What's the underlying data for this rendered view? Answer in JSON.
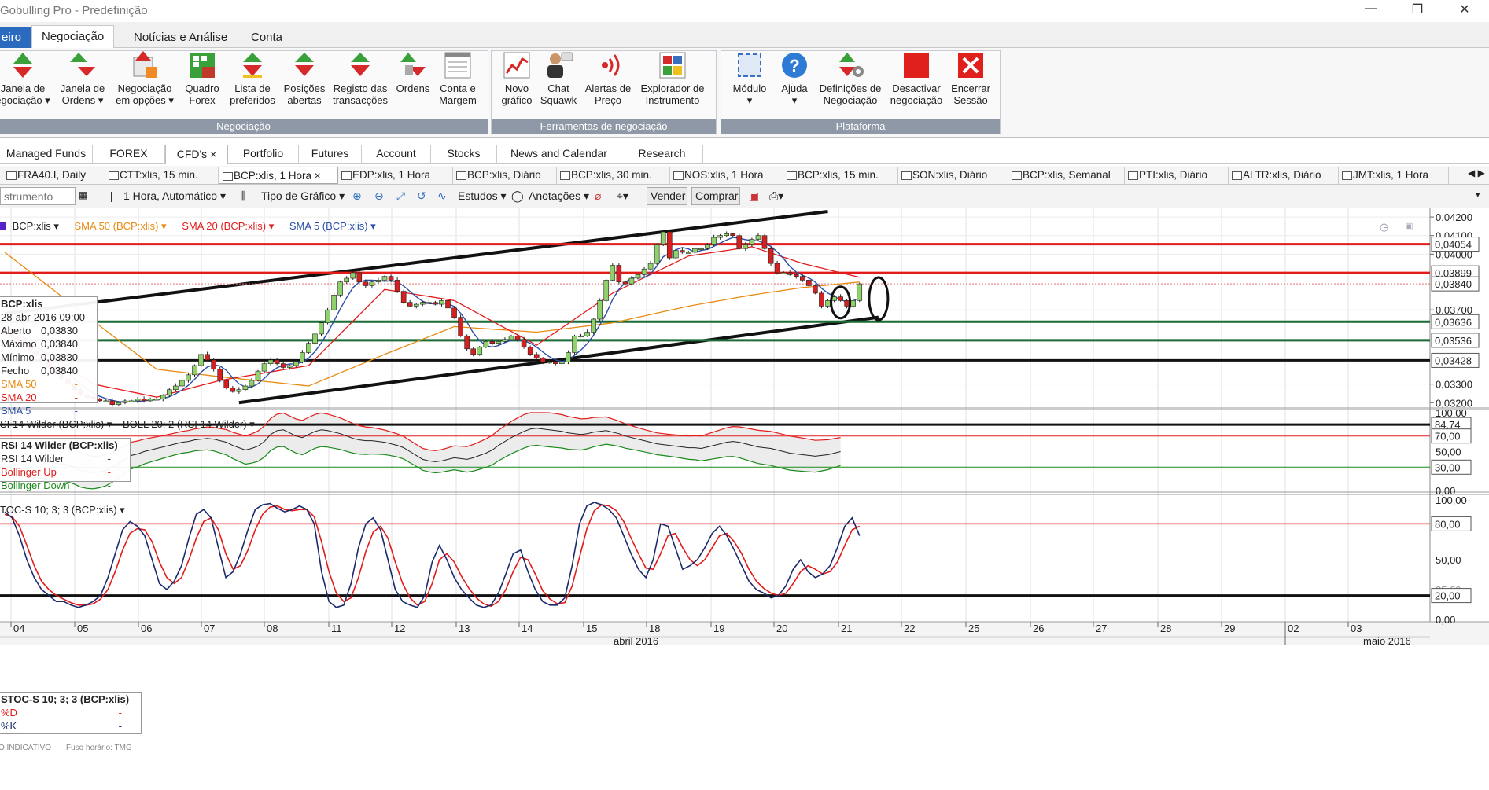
{
  "window": {
    "title": "Gobulling Pro - Predefinição"
  },
  "ribbon_tabs": [
    {
      "label": "eiro"
    },
    {
      "label": "Negociação"
    },
    {
      "label": "Notícias e Análise"
    },
    {
      "label": "Conta"
    }
  ],
  "ribbon": {
    "groups": [
      {
        "label": "Negociação"
      },
      {
        "label": "Ferramentas de negociação"
      },
      {
        "label": "Plataforma"
      }
    ],
    "buttons": [
      {
        "l1": "Janela de",
        "l2": "egociação ▾"
      },
      {
        "l1": "Janela de",
        "l2": "Ordens ▾"
      },
      {
        "l1": "Negociação",
        "l2": "em opções ▾"
      },
      {
        "l1": "Quadro",
        "l2": "Forex"
      },
      {
        "l1": "Lista de",
        "l2": "preferidos"
      },
      {
        "l1": "Posições",
        "l2": "abertas"
      },
      {
        "l1": "Registo das",
        "l2": "transacções"
      },
      {
        "l1": "Ordens",
        "l2": ""
      },
      {
        "l1": "Conta e",
        "l2": "Margem"
      },
      {
        "l1": "Novo",
        "l2": "gráfico"
      },
      {
        "l1": "Chat",
        "l2": "Squawk"
      },
      {
        "l1": "Alertas de",
        "l2": "Preço"
      },
      {
        "l1": "Explorador de",
        "l2": "Instrumento"
      },
      {
        "l1": "Módulo",
        "l2": "▾"
      },
      {
        "l1": "Ajuda",
        "l2": "▾"
      },
      {
        "l1": "Definições de",
        "l2": "Negociação"
      },
      {
        "l1": "Desactivar",
        "l2": "negociação"
      },
      {
        "l1": "Encerrar",
        "l2": "Sessão"
      }
    ]
  },
  "workspace_tabs": [
    {
      "label": "Managed Funds"
    },
    {
      "label": "FOREX"
    },
    {
      "label": "CFD's"
    },
    {
      "label": "Portfolio"
    },
    {
      "label": "Futures"
    },
    {
      "label": "Account"
    },
    {
      "label": "Stocks"
    },
    {
      "label": "News and Calendar"
    },
    {
      "label": "Research"
    }
  ],
  "close_glyph": "×",
  "chart_tabs": [
    {
      "label": "FRA40.I, Daily"
    },
    {
      "label": "CTT:xlis, 15 min."
    },
    {
      "label": "BCP:xlis, 1 Hora"
    },
    {
      "label": "EDP:xlis, 1 Hora"
    },
    {
      "label": "BCP:xlis, Diário"
    },
    {
      "label": "BCP:xlis, 30 min."
    },
    {
      "label": "NOS:xlis, 1 Hora"
    },
    {
      "label": "BCP:xlis, 15 min."
    },
    {
      "label": "SON:xlis, Diário"
    },
    {
      "label": "BCP:xlis, Semanal"
    },
    {
      "label": "PTI:xlis, Diário"
    },
    {
      "label": "ALTR:xlis, Diário"
    },
    {
      "label": "JMT:xlis, 1 Hora"
    }
  ],
  "toolbar": {
    "instrument_placeholder": "strumento",
    "interval": "1 Hora, Automático ▾",
    "chart_type": "Tipo de Gráfico ▾",
    "studies": "Estudos ▾",
    "annotations": "Anotações ▾",
    "sell": "Vender",
    "buy": "Comprar"
  },
  "price_panel": {
    "legend": [
      "BCP:xlis ▾",
      "SMA 50 (BCP:xlis) ▾",
      "SMA 20 (BCP:xlis) ▾",
      "SMA 5 (BCP:xlis) ▾"
    ],
    "info": {
      "title": "BCP:xlis",
      "datetime": "28-abr-2016 09:00",
      "rows": [
        {
          "k": "Aberto",
          "v": "0,03830"
        },
        {
          "k": "Máximo",
          "v": "0,03840"
        },
        {
          "k": "Mínimo",
          "v": "0,03830"
        },
        {
          "k": "Fecho",
          "v": "0,03840"
        },
        {
          "k": "SMA 50",
          "v": "-"
        },
        {
          "k": "SMA 20",
          "v": "-"
        },
        {
          "k": "SMA 5",
          "v": "-"
        }
      ]
    },
    "axis_ticks": [
      "0,04200",
      "0,04100",
      "0,04000",
      "0,03700",
      "0,03300",
      "0,03200"
    ],
    "level_labels": [
      "0,04054",
      "0,03899",
      "0,03840",
      "0,03636",
      "0,03536",
      "0,03428"
    ]
  },
  "rsi_panel": {
    "legend": "SI 14 Wilder (BCP:xlis) ▾",
    "legend2": "BOLL 20; 2 (RSI 14 Wilder) ▾",
    "info": {
      "title": "RSI 14 Wilder (BCP:xlis)",
      "rows": [
        {
          "k": "RSI 14 Wilder",
          "v": "-"
        },
        {
          "k": "Bollinger Up",
          "v": "-"
        },
        {
          "k": "Bollinger Down",
          "v": "-"
        }
      ]
    },
    "axis_ticks": [
      "100,00",
      "50,00",
      "0,00"
    ],
    "level_labels": [
      "84,74",
      "70,00",
      "30,00"
    ]
  },
  "stoch_panel": {
    "legend": "TOC-S 10; 3; 3 (BCP:xlis) ▾",
    "info": {
      "title": "STOC-S 10; 3; 3 (BCP:xlis)",
      "rows": [
        {
          "k": "%D",
          "v": "-"
        },
        {
          "k": "%K",
          "v": "-"
        }
      ]
    },
    "axis_ticks": [
      "100,00",
      "50,00",
      "25,00",
      "0,00"
    ],
    "level_labels": [
      "80,00",
      "20,00"
    ]
  },
  "footer": {
    "note": "O INDICATIVO",
    "tz": "Fuso horário: TMG",
    "days": [
      "04",
      "05",
      "06",
      "07",
      "08",
      "11",
      "12",
      "13",
      "14",
      "15",
      "18",
      "19",
      "20",
      "21",
      "22",
      "25",
      "26",
      "27",
      "28",
      "29",
      "02",
      "03"
    ],
    "months": [
      "abril 2016",
      "maio 2016"
    ]
  },
  "chart_data": {
    "type": "candlestick",
    "instrument": "BCP:xlis",
    "interval": "1 Hora",
    "y_range": [
      0.0318,
      0.0423
    ],
    "rsi_range": [
      0,
      100
    ],
    "stoch_range": [
      0,
      100
    ],
    "horizontal_levels": [
      {
        "value": 0.04054,
        "color": "#e21b1b"
      },
      {
        "value": 0.03899,
        "color": "#e21b1b"
      },
      {
        "value": 0.03636,
        "color": "#1a6b35"
      },
      {
        "value": 0.03536,
        "color": "#1a6b35"
      },
      {
        "value": 0.03428,
        "color": "#111111"
      }
    ],
    "trendlines": [
      {
        "from": [
          0,
          0.0368
        ],
        "to": [
          130,
          0.0423
        ],
        "color": "#111111"
      },
      {
        "from": [
          37,
          0.032
        ],
        "to": [
          138,
          0.0366
        ],
        "color": "#111111"
      }
    ],
    "closes": [
      0.0358,
      0.0355,
      0.0352,
      0.035,
      0.0348,
      0.0346,
      0.0343,
      0.0339,
      0.0336,
      0.0333,
      0.033,
      0.0327,
      0.0324,
      0.0323,
      0.0322,
      0.0321,
      0.0321,
      0.0319,
      0.032,
      0.0321,
      0.0321,
      0.0322,
      0.0321,
      0.0322,
      0.0322,
      0.0324,
      0.0327,
      0.0329,
      0.0332,
      0.0335,
      0.034,
      0.0346,
      0.0343,
      0.0338,
      0.0332,
      0.0328,
      0.0326,
      0.0327,
      0.0329,
      0.0332,
      0.0337,
      0.0341,
      0.0343,
      0.0341,
      0.0339,
      0.034,
      0.0342,
      0.0347,
      0.0352,
      0.0357,
      0.0363,
      0.037,
      0.0378,
      0.0385,
      0.0387,
      0.039,
      0.0385,
      0.0383,
      0.0385,
      0.0386,
      0.0388,
      0.0386,
      0.038,
      0.0374,
      0.0372,
      0.0373,
      0.0374,
      0.0374,
      0.0373,
      0.0375,
      0.0371,
      0.0366,
      0.0356,
      0.0349,
      0.0346,
      0.035,
      0.0353,
      0.0352,
      0.0353,
      0.0354,
      0.0356,
      0.0354,
      0.035,
      0.0346,
      0.0344,
      0.0342,
      0.0342,
      0.0341,
      0.0342,
      0.0347,
      0.0356,
      0.0356,
      0.0358,
      0.0365,
      0.0375,
      0.0386,
      0.0394,
      0.0385,
      0.0384,
      0.0387,
      0.0389,
      0.0392,
      0.0395,
      0.0405,
      0.0412,
      0.0398,
      0.0402,
      0.0401,
      0.0401,
      0.0403,
      0.0403,
      0.0405,
      0.0409,
      0.041,
      0.0411,
      0.041,
      0.0403,
      0.0405,
      0.0408,
      0.041,
      0.0403,
      0.0395,
      0.039,
      0.039,
      0.0389,
      0.0388,
      0.0386,
      0.0383,
      0.0379,
      0.0372,
      0.0375,
      0.0377,
      0.0375,
      0.0372,
      0.0375,
      0.0384
    ],
    "sma20_anchor": [
      [
        0,
        0.0362
      ],
      [
        14,
        0.033
      ],
      [
        24,
        0.0323
      ],
      [
        34,
        0.0332
      ],
      [
        48,
        0.034
      ],
      [
        60,
        0.0381
      ],
      [
        71,
        0.0375
      ],
      [
        84,
        0.0351
      ],
      [
        96,
        0.0379
      ],
      [
        108,
        0.0399
      ],
      [
        118,
        0.0404
      ],
      [
        126,
        0.0395
      ],
      [
        138,
        0.0385
      ]
    ],
    "sma50_anchor": [
      [
        0,
        0.0401
      ],
      [
        14,
        0.0364
      ],
      [
        24,
        0.0338
      ],
      [
        34,
        0.0334
      ],
      [
        48,
        0.0329
      ],
      [
        60,
        0.0346
      ],
      [
        71,
        0.0361
      ],
      [
        84,
        0.0358
      ],
      [
        96,
        0.0363
      ],
      [
        108,
        0.0372
      ],
      [
        118,
        0.0378
      ],
      [
        126,
        0.0382
      ],
      [
        138,
        0.0386
      ]
    ],
    "rsi": [
      42,
      40,
      39,
      38,
      38,
      37,
      37,
      36,
      35,
      34,
      33,
      30,
      26,
      24,
      23,
      24,
      26,
      30,
      35,
      40,
      45,
      47,
      50,
      52,
      54,
      56,
      58,
      60,
      62,
      63,
      65,
      66,
      67,
      66,
      64,
      62,
      58,
      55,
      52,
      54,
      57,
      63,
      72,
      77,
      78,
      74,
      70,
      68,
      72,
      76,
      78,
      77,
      75,
      73,
      70,
      67,
      65,
      64,
      64,
      63,
      62,
      60,
      58,
      55,
      50,
      45,
      40,
      38,
      37,
      38,
      40,
      42,
      41,
      40,
      42,
      45,
      48,
      52,
      58,
      63,
      68,
      72,
      76,
      79,
      80,
      79,
      78,
      77,
      76,
      74,
      73,
      72,
      73,
      75,
      76,
      77,
      75,
      73,
      70,
      68,
      66,
      64,
      62,
      60,
      59,
      58,
      57,
      56,
      55,
      55,
      54,
      56,
      58,
      60,
      62,
      63,
      62,
      60,
      58,
      56,
      55,
      54,
      52,
      50,
      48,
      47,
      46,
      45,
      44,
      45,
      46,
      48,
      50
    ],
    "stoch_k": [
      90,
      85,
      70,
      50,
      35,
      25,
      20,
      15,
      15,
      12,
      10,
      12,
      15,
      20,
      35,
      55,
      75,
      82,
      78,
      70,
      50,
      30,
      25,
      32,
      45,
      68,
      88,
      92,
      85,
      60,
      35,
      40,
      55,
      75,
      92,
      96,
      97,
      93,
      90,
      92,
      95,
      92,
      80,
      40,
      15,
      10,
      12,
      30,
      60,
      80,
      85,
      75,
      50,
      25,
      15,
      12,
      10,
      20,
      48,
      62,
      50,
      35,
      25,
      18,
      12,
      10,
      12,
      22,
      38,
      55,
      58,
      40,
      25,
      15,
      12,
      12,
      18,
      45,
      80,
      95,
      98,
      96,
      92,
      85,
      70,
      55,
      42,
      35,
      50,
      80,
      78,
      60,
      42,
      45,
      50,
      60,
      72,
      78,
      70,
      58,
      45,
      32,
      25,
      22,
      18,
      20,
      28,
      42,
      50,
      40,
      35,
      38,
      45,
      60,
      78,
      85,
      70
    ],
    "stoch_d": [
      88,
      86,
      78,
      62,
      45,
      32,
      25,
      20,
      17,
      14,
      12,
      12,
      13,
      17,
      25,
      40,
      58,
      72,
      76,
      75,
      65,
      48,
      35,
      30,
      35,
      50,
      68,
      82,
      85,
      75,
      55,
      42,
      45,
      58,
      75,
      88,
      94,
      95,
      92,
      91,
      92,
      92,
      86,
      65,
      40,
      22,
      15,
      18,
      35,
      57,
      73,
      78,
      68,
      48,
      30,
      18,
      12,
      15,
      30,
      50,
      55,
      48,
      36,
      26,
      18,
      13,
      11,
      15,
      25,
      40,
      52,
      50,
      38,
      24,
      17,
      13,
      14,
      28,
      52,
      76,
      91,
      96,
      95,
      91,
      82,
      68,
      55,
      43,
      42,
      55,
      70,
      72,
      60,
      50,
      45,
      50,
      60,
      70,
      72,
      65,
      55,
      42,
      32,
      26,
      22,
      20,
      22,
      30,
      40,
      45,
      42,
      38,
      40,
      48,
      62,
      75,
      78
    ]
  }
}
